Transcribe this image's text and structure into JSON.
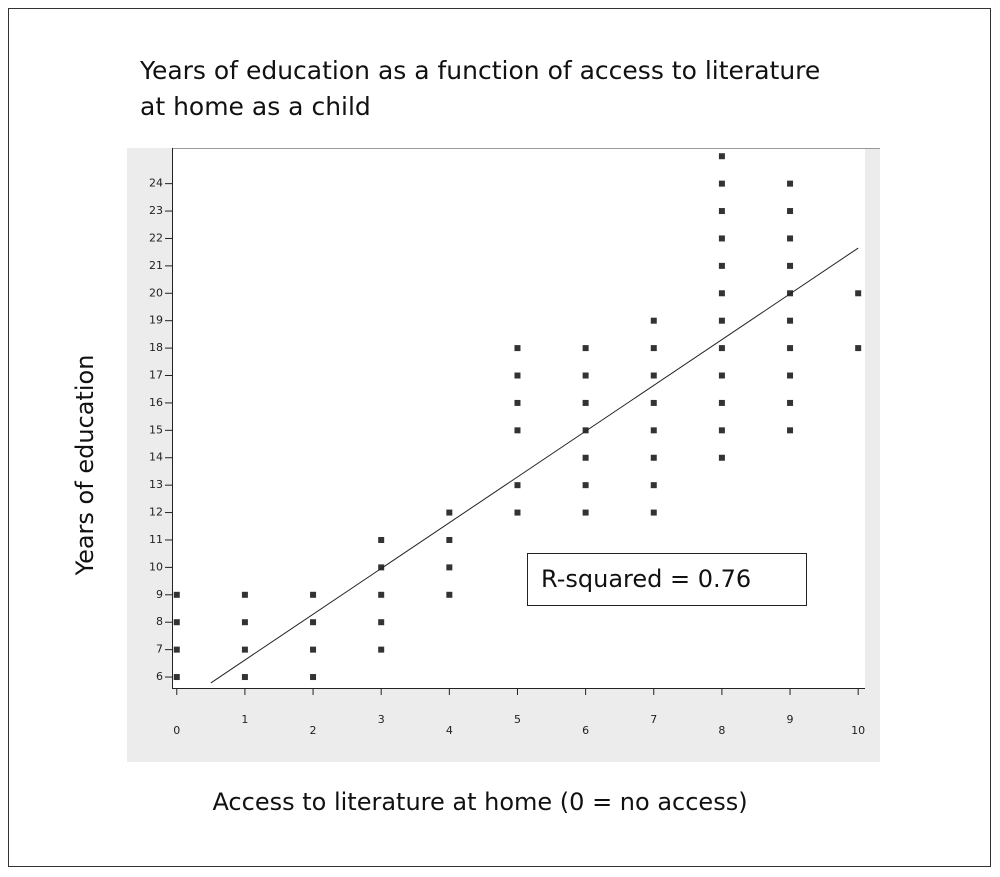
{
  "chart_data": {
    "type": "scatter",
    "title": [
      "Years of education as a function of access to literature",
      "at home as a child"
    ],
    "x_label": "Access to literature at home (0 = no access)",
    "y_label": "Years of education",
    "annotation": "R-squared = 0.76",
    "color": "#333333",
    "x": [
      0,
      0,
      0,
      0,
      1,
      1,
      1,
      1,
      2,
      2,
      2,
      2,
      3,
      3,
      3,
      3,
      3,
      4,
      4,
      4,
      4,
      5,
      5,
      5,
      5,
      5,
      5,
      6,
      6,
      6,
      6,
      6,
      6,
      6,
      7,
      7,
      7,
      7,
      7,
      7,
      7,
      7,
      8,
      8,
      8,
      8,
      8,
      8,
      8,
      8,
      8,
      8,
      8,
      8,
      9,
      9,
      9,
      9,
      9,
      9,
      9,
      9,
      9,
      9,
      10,
      10
    ],
    "values": [
      6,
      7,
      8,
      9,
      6,
      7,
      8,
      9,
      6,
      7,
      8,
      9,
      7,
      8,
      9,
      10,
      11,
      9,
      10,
      11,
      12,
      12,
      13,
      15,
      16,
      17,
      18,
      12,
      13,
      14,
      15,
      16,
      17,
      18,
      12,
      13,
      14,
      15,
      16,
      17,
      18,
      19,
      14,
      15,
      16,
      17,
      18,
      19,
      20,
      21,
      22,
      23,
      24,
      25,
      15,
      16,
      17,
      18,
      19,
      20,
      21,
      22,
      23,
      24,
      18,
      20
    ],
    "trendline": {
      "slope": 1.67,
      "intercept": 4.95,
      "x_range": [
        0.5,
        10
      ]
    },
    "xlim": [
      -0.07,
      10.1
    ],
    "xticks": [
      0,
      1,
      2,
      3,
      4,
      5,
      6,
      7,
      8,
      9,
      10
    ],
    "ylim": [
      5.6,
      25.3
    ],
    "yticks": [
      6,
      7,
      8,
      9,
      10,
      11,
      12,
      13,
      14,
      15,
      16,
      17,
      18,
      19,
      20,
      21,
      22,
      23,
      24
    ]
  }
}
